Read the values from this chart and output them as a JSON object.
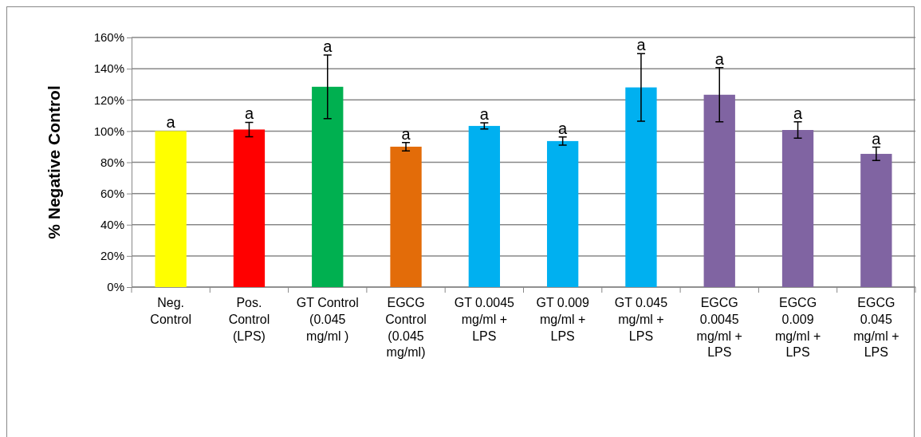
{
  "chart_data": {
    "type": "bar",
    "ylabel": "% Negative Control",
    "categories": [
      "Neg. Control",
      "Pos. Control (LPS)",
      "GT Control (0.045 mg/ml )",
      "EGCG Control (0.045 mg/ml)",
      "GT 0.0045 mg/ml + LPS",
      "GT 0.009 mg/ml + LPS",
      "GT 0.045 mg/ml + LPS",
      "EGCG 0.0045 mg/ml + LPS",
      "EGCG 0.009 mg/ml + LPS",
      "EGCG 0.045 mg/ml + LPS"
    ],
    "values": [
      100,
      101,
      128.4,
      90,
      103.3,
      93.6,
      128,
      123.3,
      100.7,
      85.4
    ],
    "errors": [
      null,
      4.6,
      20.4,
      2.7,
      2,
      2.6,
      21.7,
      17.4,
      5.3,
      4.3
    ],
    "colors": [
      "#ffff00",
      "#ff0000",
      "#00b050",
      "#e36c09",
      "#00b0f0",
      "#00b0f0",
      "#00b0f0",
      "#8064a2",
      "#8064a2",
      "#8064a2"
    ],
    "ylim": [
      0,
      160
    ],
    "yticks": [
      {
        "value": 0,
        "label": "0%"
      },
      {
        "value": 20,
        "label": "20%"
      },
      {
        "value": 40,
        "label": "40%"
      },
      {
        "value": 60,
        "label": "60%"
      },
      {
        "value": 80,
        "label": "80%"
      },
      {
        "value": 100,
        "label": "100%"
      },
      {
        "value": 120,
        "label": "120%"
      },
      {
        "value": 140,
        "label": "140%"
      },
      {
        "value": 160,
        "label": "160%"
      }
    ],
    "grid": "y",
    "annotations": [
      {
        "text": "a",
        "x": "Neg. Control",
        "y": 100
      },
      {
        "text": "a",
        "x": "Pos. Control (LPS)",
        "y": 105.6
      },
      {
        "text": "a",
        "x": "GT Control (0.045 mg/ml )",
        "y": 148.8
      },
      {
        "text": "a",
        "x": "EGCG Control (0.045 mg/ml)",
        "y": 92.7
      },
      {
        "text": "a",
        "x": "GT 0.0045 mg/ml + LPS",
        "y": 105.3
      },
      {
        "text": "a",
        "x": "GT 0.009 mg/ml + LPS",
        "y": 96.2
      },
      {
        "text": "a",
        "x": "GT 0.045 mg/ml + LPS",
        "y": 149.7
      },
      {
        "text": "a",
        "x": "EGCG 0.0045 mg/ml + LPS",
        "y": 140.7
      },
      {
        "text": "a",
        "x": "EGCG 0.009 mg/ml + LPS",
        "y": 106
      },
      {
        "text": "a",
        "x": "EGCG 0.045 mg/ml + LPS",
        "y": 89.7
      }
    ]
  }
}
